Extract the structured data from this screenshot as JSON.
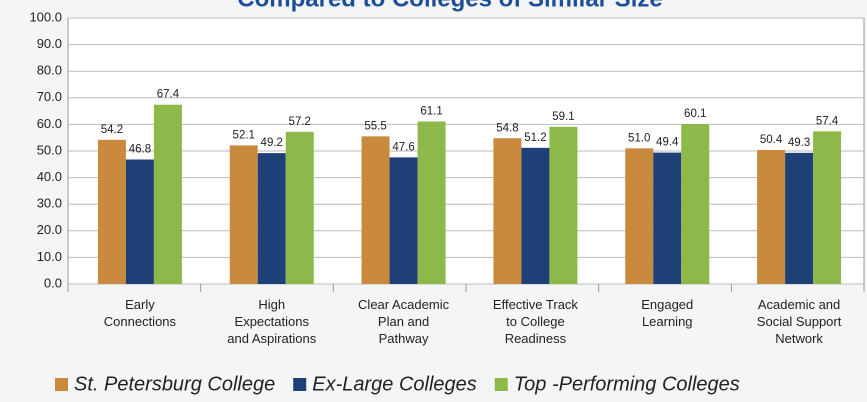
{
  "chart_data": {
    "type": "bar",
    "title": "Compared to Colleges of Similar Size",
    "categories": [
      "Early\nConnections",
      "High\nExpectations\nand Aspirations",
      "Clear Academic\nPlan and\nPathway",
      "Effective Track\nto College\nReadiness",
      "Engaged\nLearning",
      "Academic and\nSocial Support\nNetwork"
    ],
    "series": [
      {
        "name": "St. Petersburg College",
        "color": "#c98a3e",
        "values": [
          54.2,
          52.1,
          55.5,
          54.8,
          51.0,
          50.4
        ],
        "value_labels": [
          "54.2",
          "52.1",
          "55.5",
          "54.8",
          "51.0",
          "50.4"
        ]
      },
      {
        "name": "Ex-Large Colleges",
        "color": "#1f3f77",
        "values": [
          46.8,
          49.2,
          47.6,
          51.2,
          49.4,
          49.3
        ],
        "value_labels": [
          "46.8",
          "49.2",
          "47.6",
          "51.2",
          "49.4",
          "49.3"
        ]
      },
      {
        "name": "Top -Performing Colleges",
        "color": "#8db84a",
        "values": [
          67.4,
          57.2,
          61.1,
          59.1,
          60.1,
          57.4
        ],
        "value_labels": [
          "67.4",
          "57.2",
          "61.1",
          "59.1",
          "60.1",
          "57.4"
        ]
      }
    ],
    "ylim": [
      0,
      100
    ],
    "yticks": [
      {
        "value": 0,
        "label": "0.0"
      },
      {
        "value": 10,
        "label": "10.0"
      },
      {
        "value": 20,
        "label": "20.0"
      },
      {
        "value": 30,
        "label": "30.0"
      },
      {
        "value": 40,
        "label": "40.0"
      },
      {
        "value": 50,
        "label": "50.0"
      },
      {
        "value": 60,
        "label": "60.0"
      },
      {
        "value": 70,
        "label": "70.0"
      },
      {
        "value": 80,
        "label": "80.0"
      },
      {
        "value": 90,
        "label": "90.0"
      },
      {
        "value": 100,
        "label": "100.0"
      }
    ],
    "grid": true,
    "legend": "bottom"
  }
}
